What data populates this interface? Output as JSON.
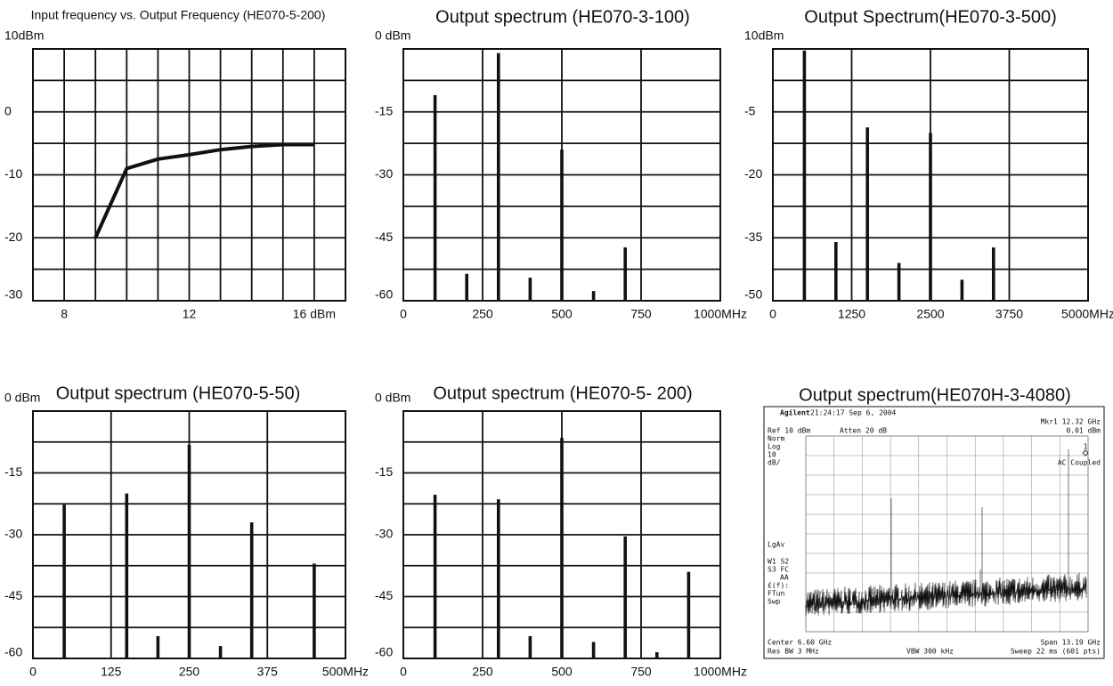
{
  "chart_data": [
    {
      "type": "line",
      "title": "Input frequency vs. Output Frequency (HE070-5-200)",
      "x": [
        9,
        10,
        11,
        12,
        13,
        14,
        15,
        16
      ],
      "values": [
        -20,
        -9,
        -7.5,
        -6.8,
        -6,
        -5.5,
        -5.2,
        -5.2
      ],
      "xlim": [
        7,
        17
      ],
      "xticks": [
        8,
        12,
        {
          "value": 16,
          "label": "16 dBm"
        }
      ],
      "minor_xticks": [
        9,
        10,
        11,
        13,
        14,
        15
      ],
      "ylim": [
        -30,
        10
      ],
      "yticks": [
        {
          "value": 10,
          "label": "10dBm"
        },
        0,
        -10,
        -20,
        -30
      ],
      "minor_yticks": [
        5,
        -5,
        -15,
        -25
      ],
      "color": "#111111",
      "grid": true
    },
    {
      "type": "bar",
      "title": "Output spectrum  (HE070-3-100)",
      "x": [
        100,
        200,
        300,
        400,
        500,
        600,
        700
      ],
      "values": [
        -11,
        -53.6,
        -1,
        -54.5,
        -24,
        -57.7,
        -47.3
      ],
      "xlim": [
        0,
        1000
      ],
      "xticks": [
        0,
        250,
        500,
        750,
        {
          "value": 1000,
          "label": "1000MHz"
        }
      ],
      "ylim": [
        -60,
        0
      ],
      "yticks": [
        {
          "value": 0,
          "label": "0 dBm"
        },
        -15,
        -30,
        -45,
        -60
      ],
      "minor_yticks": [
        -7.5,
        -22.5,
        -37.5,
        -52.5
      ],
      "color": "#111111",
      "grid": true
    },
    {
      "type": "bar",
      "title": "Output Spectrum(HE070-3-500)",
      "x": [
        500,
        1000,
        1500,
        2000,
        2500,
        3000,
        3500
      ],
      "values": [
        9.6,
        -36,
        -8.7,
        -41,
        -10,
        -45,
        -37.3
      ],
      "xlim": [
        0,
        5000
      ],
      "xticks": [
        0,
        1250,
        2500,
        3750,
        {
          "value": 5000,
          "label": "5000MHz"
        }
      ],
      "ylim": [
        -50,
        10
      ],
      "yticks": [
        {
          "value": 10,
          "label": "10dBm"
        },
        -5,
        -20,
        -35,
        -50
      ],
      "minor_yticks": [
        2.5,
        -12.5,
        -27.5,
        -42.5
      ],
      "color": "#111111",
      "grid": true
    },
    {
      "type": "bar",
      "title": "Output spectrum  (HE070-5-50)",
      "x": [
        50,
        150,
        200,
        250,
        300,
        350,
        450
      ],
      "values": [
        -22.7,
        -20,
        -54.6,
        -8.2,
        -57,
        -27,
        -37
      ],
      "xlim": [
        0,
        500
      ],
      "xticks": [
        0,
        125,
        250,
        375,
        {
          "value": 500,
          "label": "500MHz"
        }
      ],
      "ylim": [
        -60,
        0
      ],
      "yticks": [
        {
          "value": 0,
          "label": "0 dBm"
        },
        -15,
        -30,
        -45,
        -60
      ],
      "minor_yticks": [
        -7.5,
        -22.5,
        -37.5,
        -52.5
      ],
      "color": "#111111",
      "grid": true
    },
    {
      "type": "bar",
      "title": "Output spectrum  (HE070-5- 200)",
      "x": [
        100,
        300,
        400,
        500,
        600,
        700,
        800,
        900
      ],
      "values": [
        -20.3,
        -21.4,
        -54.6,
        -6.5,
        -56,
        -30.4,
        -58.5,
        -39
      ],
      "xlim": [
        0,
        1000
      ],
      "xticks": [
        0,
        250,
        500,
        750,
        {
          "value": 1000,
          "label": "1000MHz"
        }
      ],
      "ylim": [
        -60,
        0
      ],
      "yticks": [
        {
          "value": 0,
          "label": "0 dBm"
        },
        -15,
        -30,
        -45,
        -60
      ],
      "minor_yticks": [
        -7.5,
        -22.5,
        -37.5,
        -52.5
      ],
      "color": "#111111",
      "grid": true
    }
  ],
  "analyzer": {
    "title": "Output spectrum(HE070H-3-4080)",
    "brand": "Agilent",
    "header": "21:24:17  Sep 6, 2004",
    "marker": "Mkr1  12.32 GHz",
    "ref": "Ref 10 dBm",
    "atten": "Atten 20 dB",
    "marker_level": "0.01 dBm",
    "side_labels": [
      "Norm",
      "Log",
      "10",
      "dB/"
    ],
    "coupling": "AC Coupled",
    "marker_number": "1",
    "side_labels_2": [
      "LgAv",
      "W1  S2",
      "S3  FC",
      "AA",
      "£(f):",
      "FTun",
      "Swp"
    ],
    "center": "Center 6.60 GHz",
    "span": "Span 13.19 GHz",
    "rbw": "Res BW 3 MHz",
    "vbw": "VBW 300 kHz",
    "sweep": "Sweep 22 ms (601 pts)"
  }
}
